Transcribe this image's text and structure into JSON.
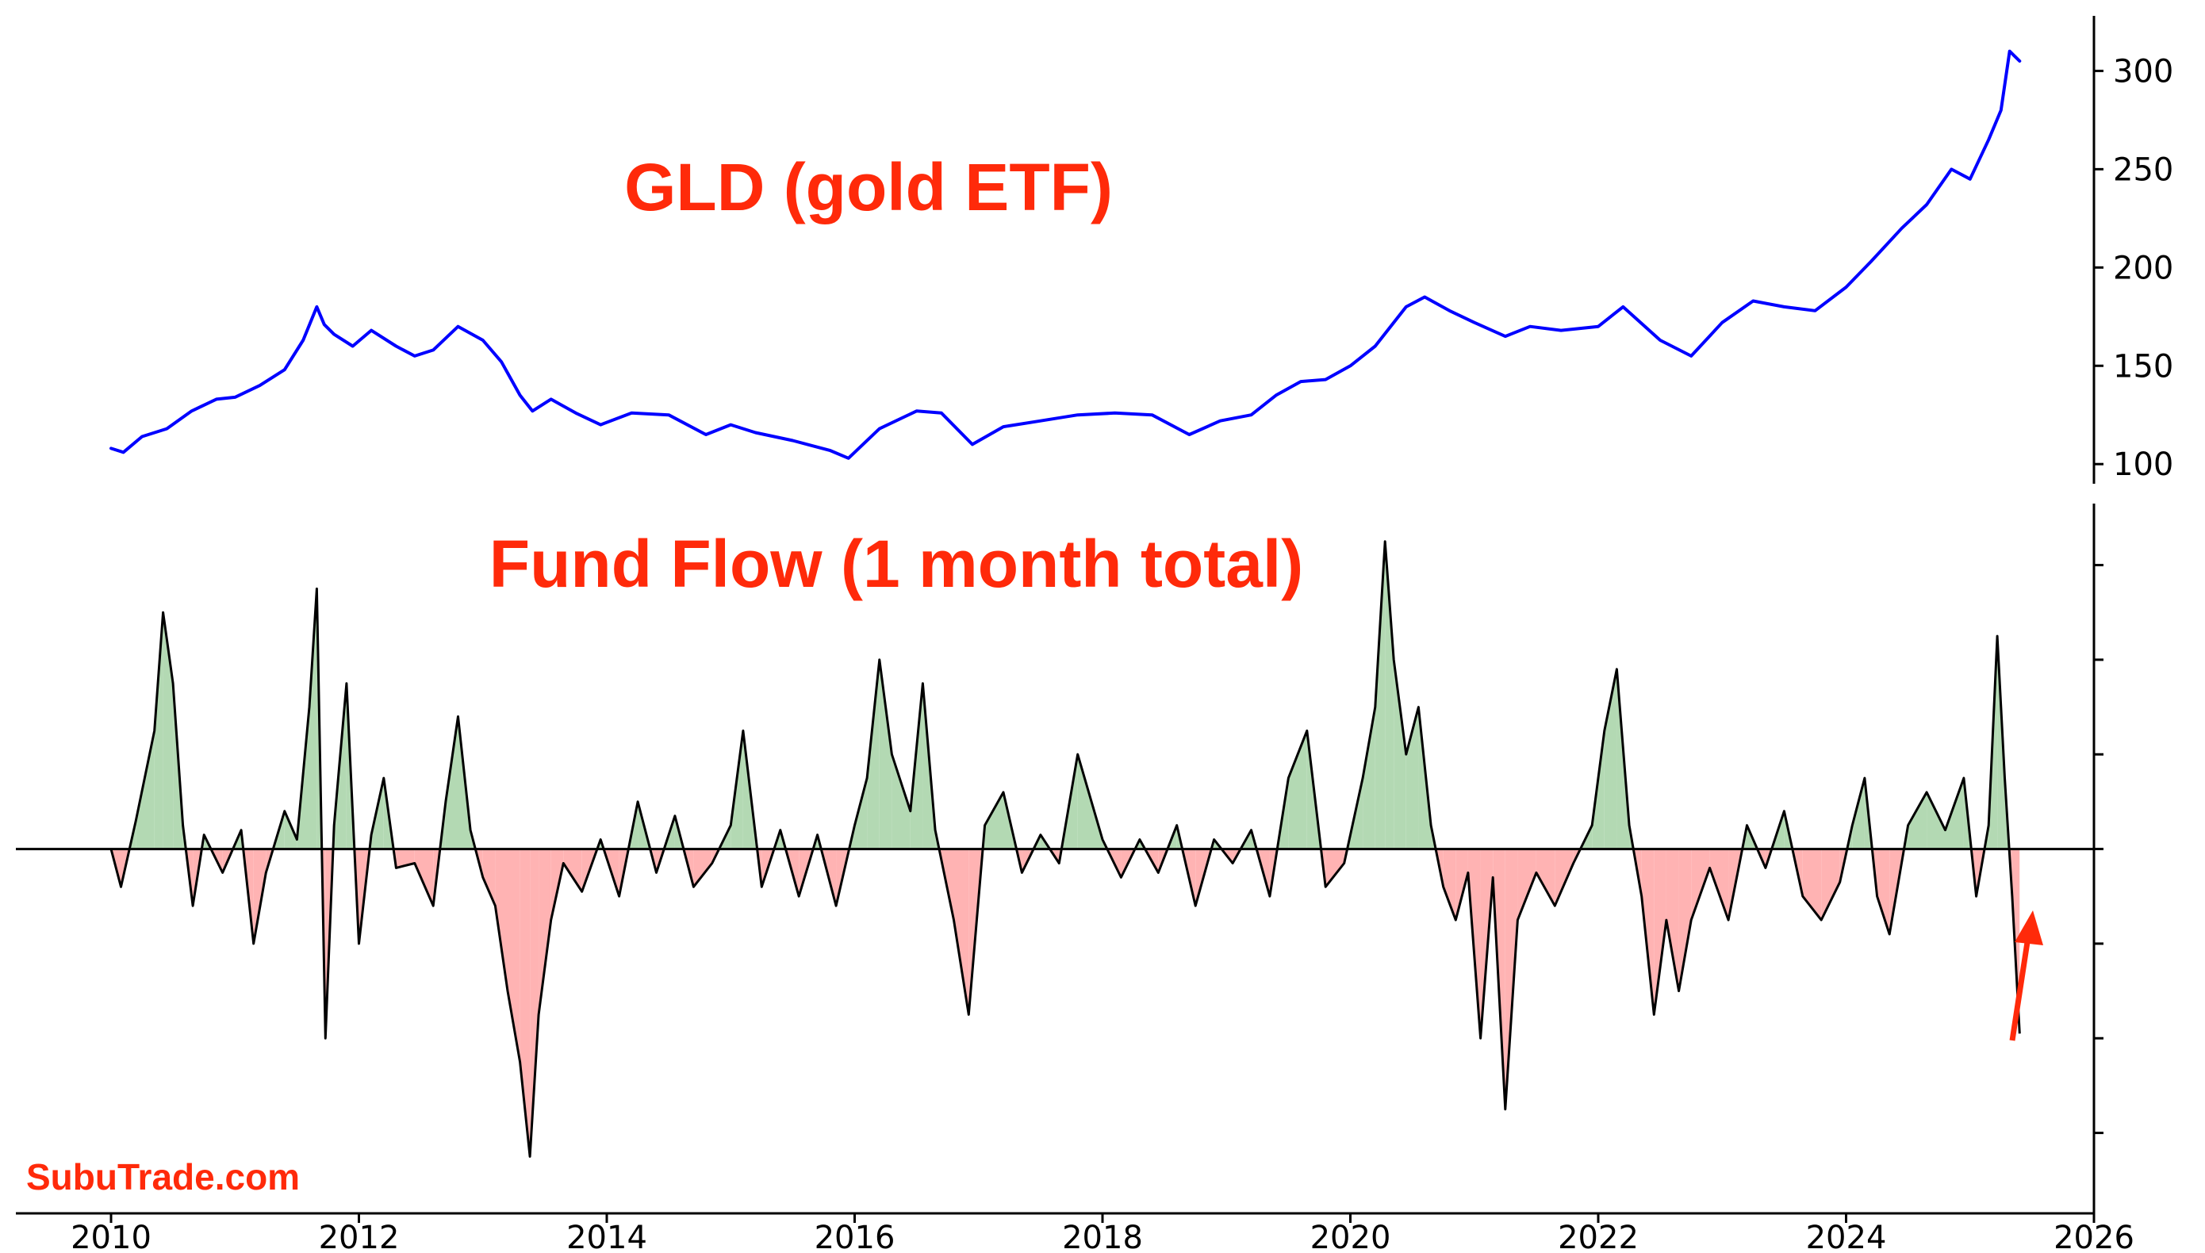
{
  "chart_data": [
    {
      "type": "line",
      "title": "GLD (gold ETF)",
      "title_color": "#ff2a0a",
      "line_color": "#0000ff",
      "xlim": [
        2010,
        2026
      ],
      "ylim": [
        90,
        328
      ],
      "y_ticks": [
        100,
        150,
        200,
        250,
        300
      ],
      "y_axis_side": "right",
      "grid": false,
      "series": [
        {
          "x": [
            2010.0,
            2010.1,
            2010.25,
            2010.45,
            2010.65,
            2010.85,
            2011.0,
            2011.2,
            2011.4,
            2011.55,
            2011.66,
            2011.72,
            2011.8,
            2011.95,
            2012.1,
            2012.3,
            2012.45,
            2012.6,
            2012.8,
            2013.0,
            2013.15,
            2013.3,
            2013.4,
            2013.55,
            2013.75,
            2013.95,
            2014.2,
            2014.5,
            2014.8,
            2015.0,
            2015.2,
            2015.5,
            2015.8,
            2015.95,
            2016.2,
            2016.5,
            2016.7,
            2016.95,
            2017.2,
            2017.5,
            2017.8,
            2018.1,
            2018.4,
            2018.7,
            2018.95,
            2019.2,
            2019.4,
            2019.6,
            2019.8,
            2020.0,
            2020.2,
            2020.45,
            2020.6,
            2020.8,
            2021.0,
            2021.25,
            2021.45,
            2021.7,
            2022.0,
            2022.2,
            2022.5,
            2022.75,
            2023.0,
            2023.25,
            2023.5,
            2023.75,
            2024.0,
            2024.2,
            2024.45,
            2024.65,
            2024.85,
            2025.0,
            2025.15,
            2025.25,
            2025.32,
            2025.4
          ],
          "y": [
            108,
            106,
            114,
            118,
            127,
            133,
            134,
            140,
            148,
            163,
            180,
            171,
            166,
            160,
            168,
            160,
            155,
            158,
            170,
            163,
            152,
            135,
            127,
            133,
            126,
            120,
            126,
            125,
            115,
            120,
            116,
            112,
            107,
            103,
            118,
            127,
            126,
            110,
            119,
            122,
            125,
            126,
            125,
            115,
            122,
            125,
            135,
            142,
            143,
            150,
            160,
            180,
            185,
            178,
            172,
            165,
            170,
            168,
            170,
            180,
            163,
            155,
            172,
            183,
            180,
            178,
            190,
            203,
            220,
            232,
            250,
            245,
            265,
            280,
            310,
            305
          ]
        }
      ]
    },
    {
      "type": "area",
      "title": "Fund Flow (1 month total)",
      "title_color": "#ff2a0a",
      "line_color": "#000000",
      "positive_fill": "#b3d9b3",
      "negative_fill": "#ffb3b3",
      "xlim": [
        2010,
        2026
      ],
      "ylim": [
        -7.7,
        7.3
      ],
      "y_ticks": [
        -6,
        -4,
        -2,
        0,
        2,
        4,
        6
      ],
      "y_axis_side": "right",
      "x_ticks": [
        2010,
        2012,
        2014,
        2016,
        2018,
        2020,
        2022,
        2024,
        2026
      ],
      "grid": false,
      "zero_line": true,
      "series": [
        {
          "x": [
            2010.0,
            2010.08,
            2010.2,
            2010.35,
            2010.42,
            2010.5,
            2010.58,
            2010.66,
            2010.75,
            2010.9,
            2011.05,
            2011.15,
            2011.25,
            2011.4,
            2011.5,
            2011.6,
            2011.66,
            2011.73,
            2011.8,
            2011.9,
            2012.0,
            2012.1,
            2012.2,
            2012.3,
            2012.45,
            2012.6,
            2012.7,
            2012.8,
            2012.9,
            2013.0,
            2013.1,
            2013.2,
            2013.3,
            2013.38,
            2013.45,
            2013.55,
            2013.65,
            2013.8,
            2013.95,
            2014.1,
            2014.25,
            2014.4,
            2014.55,
            2014.7,
            2014.85,
            2015.0,
            2015.1,
            2015.25,
            2015.4,
            2015.55,
            2015.7,
            2015.85,
            2016.0,
            2016.1,
            2016.2,
            2016.3,
            2016.45,
            2016.55,
            2016.65,
            2016.8,
            2016.92,
            2017.05,
            2017.2,
            2017.35,
            2017.5,
            2017.65,
            2017.8,
            2018.0,
            2018.15,
            2018.3,
            2018.45,
            2018.6,
            2018.75,
            2018.9,
            2019.05,
            2019.2,
            2019.35,
            2019.5,
            2019.65,
            2019.8,
            2019.95,
            2020.1,
            2020.2,
            2020.28,
            2020.35,
            2020.45,
            2020.55,
            2020.65,
            2020.75,
            2020.85,
            2020.95,
            2021.05,
            2021.15,
            2021.25,
            2021.35,
            2021.5,
            2021.65,
            2021.8,
            2021.95,
            2022.05,
            2022.15,
            2022.25,
            2022.35,
            2022.45,
            2022.55,
            2022.65,
            2022.75,
            2022.9,
            2023.05,
            2023.2,
            2023.35,
            2023.5,
            2023.65,
            2023.8,
            2023.95,
            2024.05,
            2024.15,
            2024.25,
            2024.35,
            2024.5,
            2024.65,
            2024.8,
            2024.95,
            2025.05,
            2025.15,
            2025.22,
            2025.28,
            2025.34,
            2025.4
          ],
          "y": [
            0.0,
            -0.8,
            0.6,
            2.5,
            5.0,
            3.5,
            0.5,
            -1.2,
            0.3,
            -0.5,
            0.4,
            -2.0,
            -0.5,
            0.8,
            0.2,
            3.0,
            5.5,
            -4.0,
            0.5,
            3.5,
            -2.0,
            0.3,
            1.5,
            -0.4,
            -0.3,
            -1.2,
            1.0,
            2.8,
            0.4,
            -0.6,
            -1.2,
            -3.0,
            -4.5,
            -6.5,
            -3.5,
            -1.5,
            -0.3,
            -0.9,
            0.2,
            -1.0,
            1.0,
            -0.5,
            0.7,
            -0.8,
            -0.3,
            0.5,
            2.5,
            -0.8,
            0.4,
            -1.0,
            0.3,
            -1.2,
            0.5,
            1.5,
            4.0,
            2.0,
            0.8,
            3.5,
            0.4,
            -1.5,
            -3.5,
            0.5,
            1.2,
            -0.5,
            0.3,
            -0.3,
            2.0,
            0.2,
            -0.6,
            0.2,
            -0.5,
            0.5,
            -1.2,
            0.2,
            -0.3,
            0.4,
            -1.0,
            1.5,
            2.5,
            -0.8,
            -0.3,
            1.5,
            3.0,
            6.5,
            4.0,
            2.0,
            3.0,
            0.5,
            -0.8,
            -1.5,
            -0.5,
            -4.0,
            -0.6,
            -5.5,
            -1.5,
            -0.5,
            -1.2,
            -0.3,
            0.5,
            2.5,
            3.8,
            0.5,
            -1.0,
            -3.5,
            -1.5,
            -3.0,
            -1.5,
            -0.4,
            -1.5,
            0.5,
            -0.4,
            0.8,
            -1.0,
            -1.5,
            -0.7,
            0.5,
            1.5,
            -1.0,
            -1.8,
            0.5,
            1.2,
            0.4,
            1.5,
            -1.0,
            0.5,
            4.5,
            1.5,
            -1.0,
            -3.9
          ]
        }
      ]
    }
  ],
  "annotations": {
    "arrow_color": "#ff2a0a",
    "brand_text": "SubuTrade.com",
    "brand_color": "#ff2a0a"
  }
}
